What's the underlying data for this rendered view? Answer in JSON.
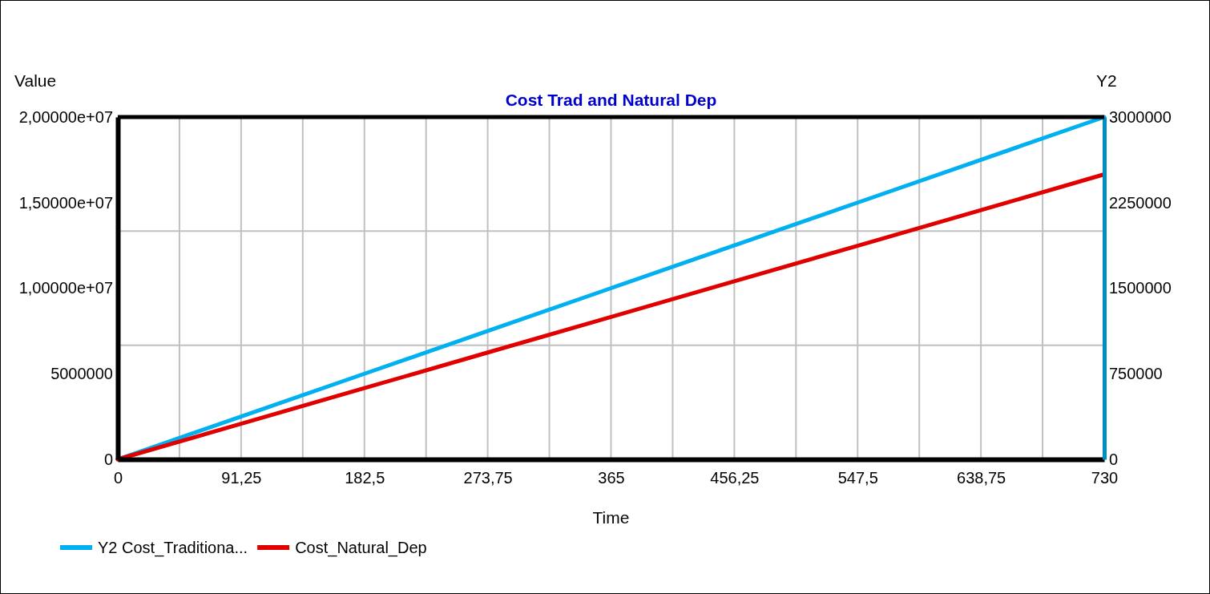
{
  "chart_data": {
    "type": "line",
    "title": "Cost Trad and Natural Dep",
    "xlabel": "Time",
    "ylabel": "Value",
    "y2label": "Y2",
    "x": [
      0,
      91.25,
      182.5,
      273.75,
      365,
      456.25,
      547.5,
      638.75,
      730
    ],
    "series": [
      {
        "name": "Y2 Cost_Traditiona...",
        "color": "#00b0f0",
        "axis": "y2",
        "values": [
          0,
          375000,
          750000,
          1125000,
          1500000,
          1875000,
          2250000,
          2625000,
          3000000
        ]
      },
      {
        "name": "Cost_Natural_Dep",
        "color": "#e00000",
        "values": [
          0,
          2080000,
          4160000,
          6240000,
          8320000,
          10400000,
          12480000,
          14560000,
          16650000
        ]
      }
    ],
    "xlim": [
      0,
      730
    ],
    "xticks": [
      0,
      {
        "value": 45.625,
        "label": null
      },
      {
        "value": 91.25,
        "label": "91,25"
      },
      {
        "value": 136.875,
        "label": null
      },
      {
        "value": 182.5,
        "label": "182,5"
      },
      {
        "value": 228.125,
        "label": null
      },
      {
        "value": 273.75,
        "label": "273,75"
      },
      {
        "value": 319.375,
        "label": null
      },
      365,
      {
        "value": 410.625,
        "label": null
      },
      {
        "value": 456.25,
        "label": "456,25"
      },
      {
        "value": 501.875,
        "label": null
      },
      {
        "value": 547.5,
        "label": "547,5"
      },
      {
        "value": 593.125,
        "label": null
      },
      {
        "value": 638.75,
        "label": "638,75"
      },
      {
        "value": 684.375,
        "label": null
      },
      730
    ],
    "ylim": [
      0,
      20000000
    ],
    "yticks": [
      0,
      5000000,
      {
        "value": 10000000,
        "label": "1,00000e+07"
      },
      {
        "value": 15000000,
        "label": "1,50000e+07"
      },
      {
        "value": 20000000,
        "label": "2,00000e+07"
      }
    ],
    "y2lim": [
      0,
      3000000
    ],
    "y2ticks": [
      0,
      750000,
      1500000,
      2250000,
      3000000
    ],
    "ref_lines": [
      {
        "axis": "y2",
        "value": 1000000,
        "color": "#c0c0c0"
      },
      {
        "axis": "y2",
        "value": 2000000,
        "color": "#c0c0c0"
      }
    ],
    "grid": "x",
    "legend": "bottom",
    "line_style": "solid",
    "marker": "none"
  }
}
